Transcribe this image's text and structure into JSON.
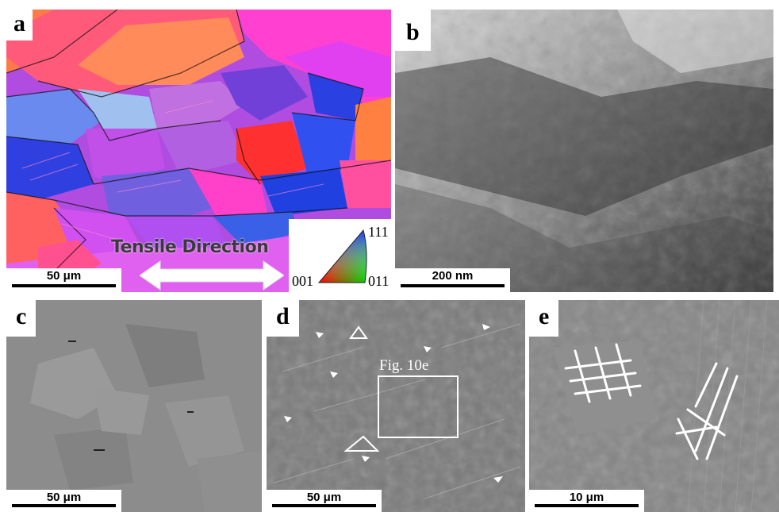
{
  "panels": {
    "a": {
      "label": "a",
      "scale_bar": "50 μm",
      "arrow_text": "Tensile Direction",
      "ipf_legend": {
        "top": "111",
        "left": "001",
        "right": "011"
      }
    },
    "b": {
      "label": "b",
      "scale_bar": "200 nm"
    },
    "c": {
      "label": "c",
      "scale_bar": "50 μm"
    },
    "d": {
      "label": "d",
      "scale_bar": "50 μm",
      "box_caption": "Fig. 10e"
    },
    "e": {
      "label": "e",
      "scale_bar": "10 μm"
    }
  }
}
